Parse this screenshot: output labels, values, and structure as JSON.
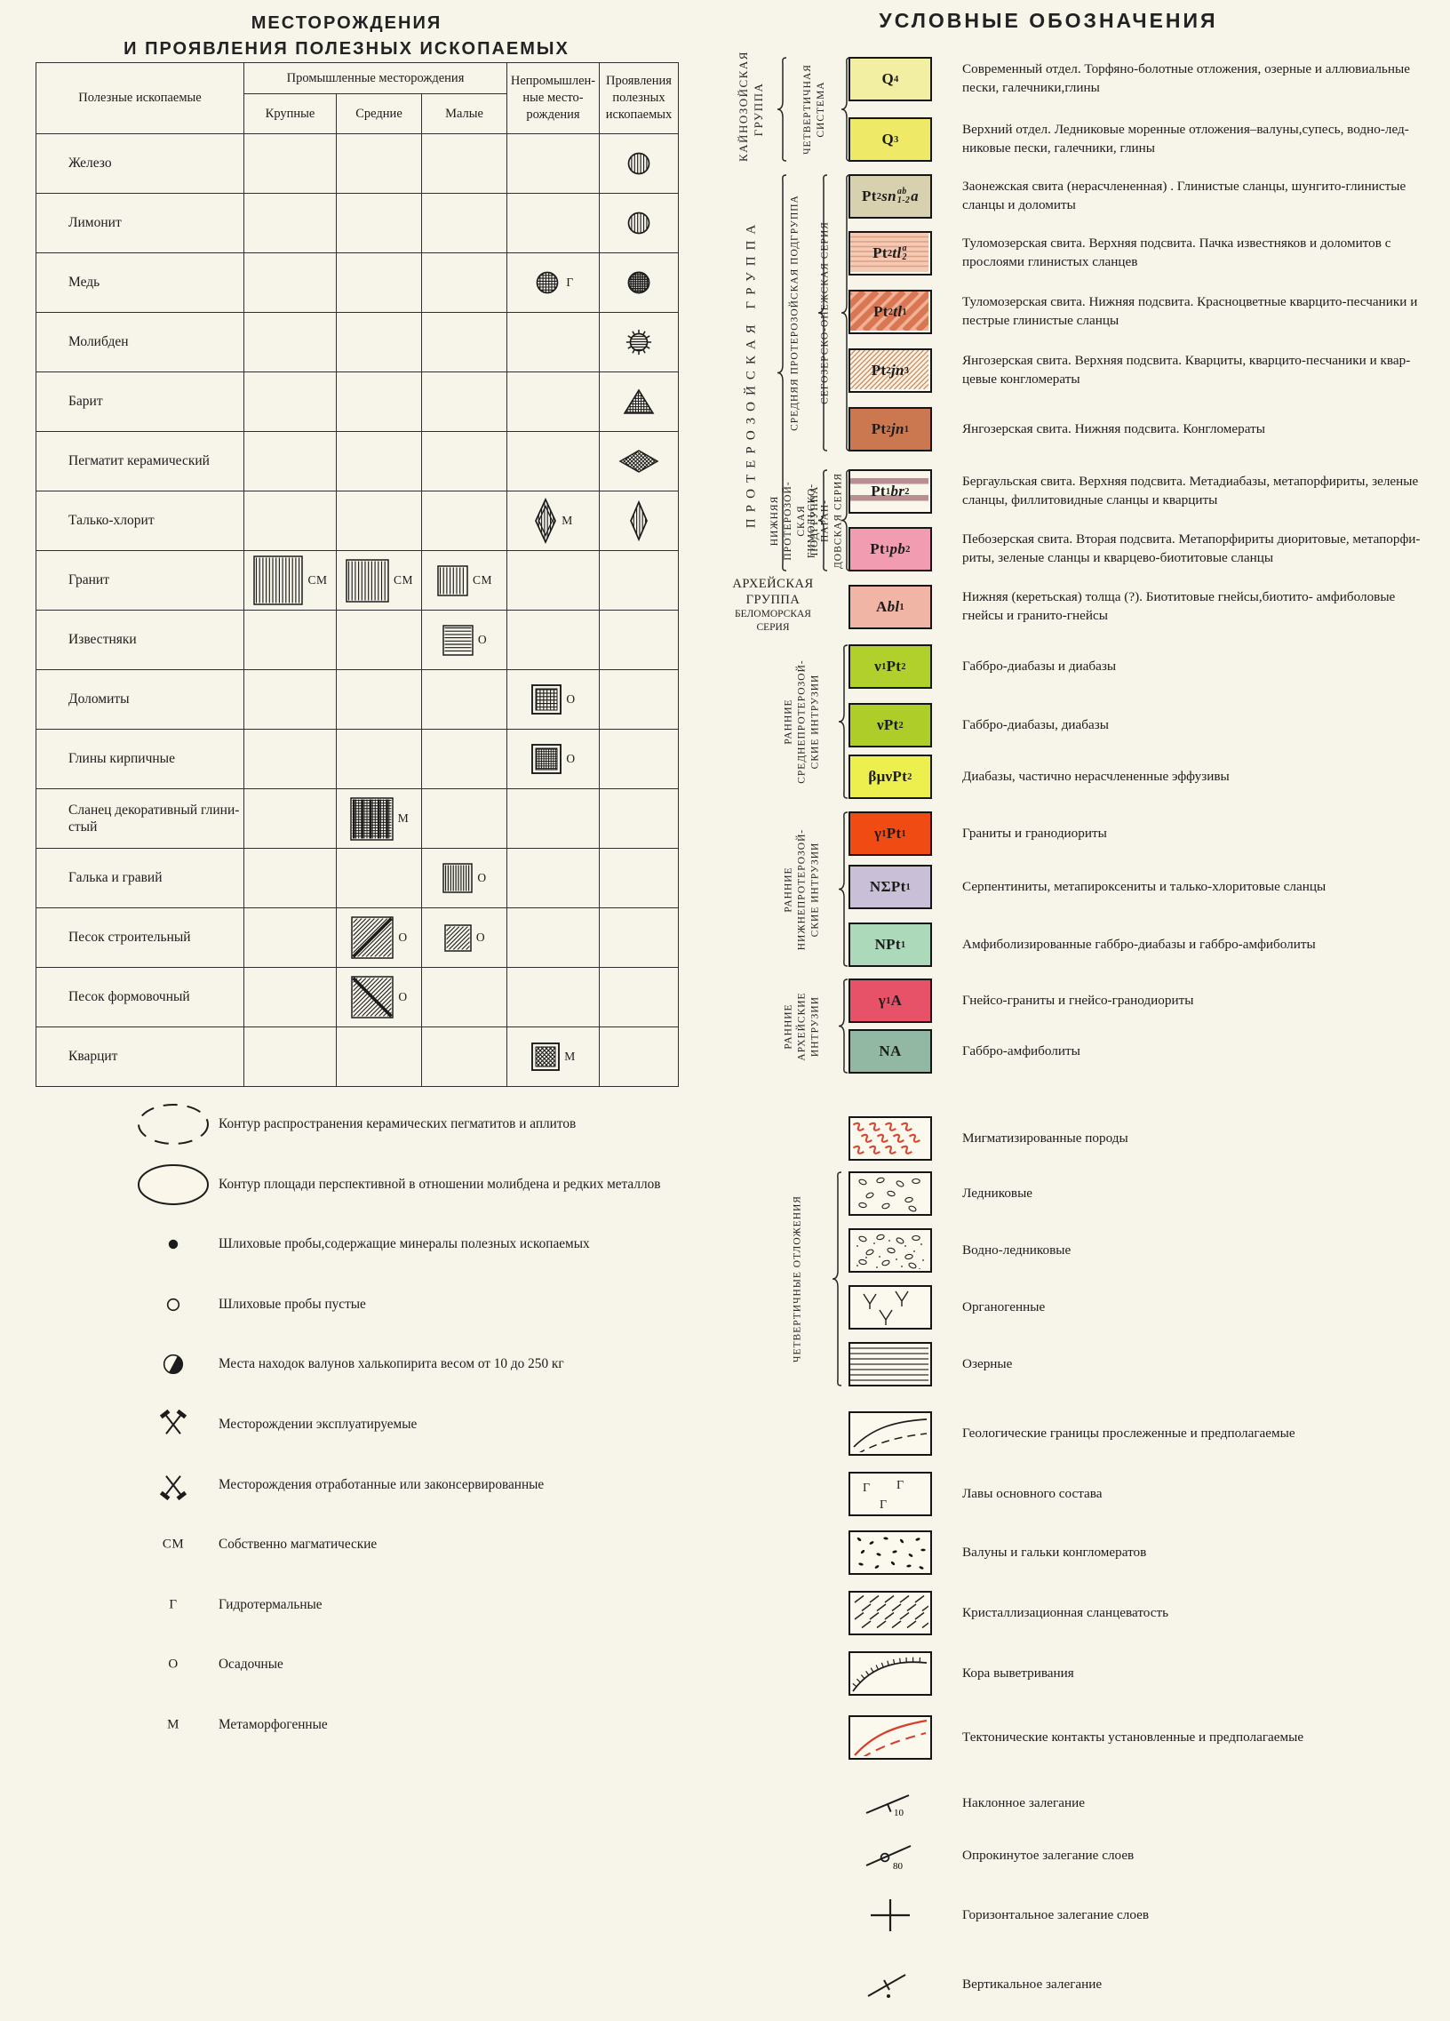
{
  "left": {
    "title_line1": "МЕСТОРОЖДЕНИЯ",
    "title_line2": "И ПРОЯВЛЕНИЯ ПОЛЕЗНЫХ ИСКОПАЕМЫХ",
    "table": {
      "header": {
        "minerals": "Полезные ископаемые",
        "industrial": "Промышленные месторождения",
        "sub": [
          "Крупные",
          "Средние",
          "Малые"
        ],
        "nonindustrial": "Непромышлен-\nные место-\nрождения",
        "occurrences": "Проявления\nполезных\nископаемых"
      },
      "rows": [
        {
          "name": "Железо",
          "cells": {
            "occur": {
              "kind": "circle",
              "pat": "v"
            }
          }
        },
        {
          "name": "Лимонит",
          "cells": {
            "occur": {
              "kind": "circle",
              "pat": "v"
            }
          }
        },
        {
          "name": "Медь",
          "cells": {
            "nonind": {
              "kind": "circle",
              "pat": "grid",
              "letter": "Г"
            },
            "occur": {
              "kind": "circle",
              "pat": "grid-bold"
            }
          }
        },
        {
          "name": "Молибден",
          "cells": {
            "occur": {
              "kind": "circle",
              "pat": "gear"
            }
          }
        },
        {
          "name": "Барит",
          "cells": {
            "occur": {
              "kind": "triangle"
            }
          }
        },
        {
          "name": "Пегматит керамический",
          "cells": {
            "occur": {
              "kind": "diamond-flat"
            }
          }
        },
        {
          "name": "Талько-хлорит",
          "cells": {
            "nonind": {
              "kind": "diamond-tall",
              "variant": "double",
              "letter": "М"
            },
            "occur": {
              "kind": "diamond-tall",
              "small": true
            }
          }
        },
        {
          "name": "Гранит",
          "cells": {
            "large": {
              "kind": "square",
              "size": 54,
              "pat": "v",
              "letter": "СМ"
            },
            "medium": {
              "kind": "square",
              "size": 47,
              "pat": "v",
              "letter": "СМ"
            },
            "small": {
              "kind": "square",
              "size": 33,
              "pat": "v",
              "letter": "СМ"
            }
          }
        },
        {
          "name": "Известняки",
          "cells": {
            "small": {
              "kind": "square",
              "size": 33,
              "pat": "h",
              "letter": "О"
            }
          }
        },
        {
          "name": "Доломиты",
          "cells": {
            "nonind": {
              "kind": "square",
              "size": 28,
              "pat": "grid",
              "bordered": true,
              "letter": "О"
            }
          }
        },
        {
          "name": "Глины кирпичные",
          "cells": {
            "nonind": {
              "kind": "square",
              "size": 28,
              "pat": "finegrid",
              "bordered": true,
              "letter": "О"
            }
          }
        },
        {
          "name": "Сланец декоративный глини-\nстый",
          "cells": {
            "medium": {
              "kind": "square",
              "size": 47,
              "pat": "densegrid",
              "letter": "М"
            }
          }
        },
        {
          "name": "Галька и гравий",
          "cells": {
            "small": {
              "kind": "square",
              "size": 32,
              "pat": "vdense",
              "letter": "О"
            }
          }
        },
        {
          "name": "Песок строительный",
          "cells": {
            "medium": {
              "kind": "square",
              "size": 46,
              "pat": "hatch",
              "bold": "up",
              "letter": "О"
            },
            "small": {
              "kind": "square",
              "size": 29,
              "pat": "hatch",
              "letter": "О"
            }
          }
        },
        {
          "name": "Песок формовочный",
          "cells": {
            "medium": {
              "kind": "square",
              "size": 46,
              "pat": "hatch",
              "bold": "down",
              "letter": "О"
            }
          }
        },
        {
          "name": "Кварцит",
          "cells": {
            "nonind": {
              "kind": "square",
              "size": 26,
              "pat": "crosshatch",
              "bordered": true,
              "letter": "М"
            }
          }
        }
      ]
    },
    "notes": [
      {
        "sym": "ellipse-dashed",
        "label": "Контур распространения  керамических  пегматитов и аплитов"
      },
      {
        "sym": "ellipse",
        "label": "Контур площади  перспективной  в  отношении  молибдена  и  редких  металлов"
      },
      {
        "sym": "dot",
        "label": "Шлиховые  пробы,содержащие  минералы  полезных ископаемых"
      },
      {
        "sym": "circle",
        "label": "Шлиховые  пробы  пустые"
      },
      {
        "sym": "half-circle",
        "label": "Места находок  валунов  халькопирита  весом  от 10 до 250 кг"
      },
      {
        "sym": "hammers-up",
        "label": "Месторождении  эксплуатируемые"
      },
      {
        "sym": "hammers-down",
        "label": "Месторождения   отработанные или  законсервированные"
      },
      {
        "sym": "letters",
        "text": "СМ",
        "label": "Собственно  магматические"
      },
      {
        "sym": "letters",
        "text": "Г",
        "label": "Гидротермальные"
      },
      {
        "sym": "letters",
        "text": "О",
        "label": "Осадочные"
      },
      {
        "sym": "letters",
        "text": "М",
        "label": "Метаморфогенные"
      }
    ]
  },
  "right": {
    "title": "УСЛОВНЫЕ  ОБОЗНАЧЕНИЯ",
    "groups": [
      {
        "label": "КАЙНОЗОЙСКАЯ\nГРУППА",
        "span": [
          0,
          1
        ],
        "slot": "group"
      },
      {
        "label": "ЧЕТВЕРТИЧНАЯ\nСИСТЕМА",
        "span": [
          0,
          1
        ],
        "slot": "system"
      },
      {
        "label": "ПРОТЕРОЗОЙСКАЯ   ГРУППА",
        "span": [
          2,
          8
        ],
        "slot": "group",
        "big": true
      },
      {
        "label": "СРЕДНЯЯ  ПРОТЕРОЗОЙСКАЯ  ПОДГРУППА",
        "span": [
          2,
          6
        ],
        "slot": "subgroup"
      },
      {
        "label": "СЕГОЗЕРСКО-ОНЕЖСКАЯ  СЕРИЯ",
        "span": [
          2,
          6
        ],
        "slot": "series"
      },
      {
        "label": "НИЖНЯЯ ПРОТЕРОЗОЙ-\nСКАЯ ПОДГРУППА",
        "span": [
          7,
          8
        ],
        "slot": "subgroup"
      },
      {
        "label": "ГИМОЛЬСКО-ПАРАН-\nДОВСКАЯ СЕРИЯ",
        "span": [
          7,
          8
        ],
        "slot": "series"
      },
      {
        "label": "АРХЕЙСКАЯ\nГРУППА",
        "label2": "БЕЛОМОРСКАЯ\nСЕРИЯ",
        "span": [
          9,
          9
        ],
        "slot": "archean"
      },
      {
        "label": "РАННИЕ\nСРЕДНЕПРОТЕРОЗОЙ-\nСКИЕ ИНТРУЗИИ",
        "span": [
          10,
          12
        ],
        "slot": "intrusion"
      },
      {
        "label": "РАННИЕ\nНИЖНЕПРОТЕРОЗОЙ-\nСКИЕ ИНТРУЗИИ",
        "span": [
          13,
          15
        ],
        "slot": "intrusion"
      },
      {
        "label": "РАННИЕ\nАРХЕЙСКИЕ\nИНТРУЗИИ",
        "span": [
          16,
          17
        ],
        "slot": "intrusion"
      },
      {
        "label": "ЧЕТВЕРТИЧНЫЕ  ОТЛОЖЕНИЯ",
        "span": [
          19,
          22
        ],
        "slot": "quaternary"
      }
    ],
    "entries": [
      {
        "code": [
          [
            "t",
            "Q"
          ],
          [
            "sub",
            "4"
          ]
        ],
        "pattern": "solid",
        "color": "#f2eea2",
        "desc": "Современный отдел. Торфяно-болотные отложения, озерные и аллювиальные пески, галечники,глины"
      },
      {
        "code": [
          [
            "t",
            "Q"
          ],
          [
            "sub",
            "3"
          ]
        ],
        "pattern": "solid",
        "color": "#eeea68",
        "desc": "Верхний отдел. Ледниковые  моренные  отложения–валуны,супесь, водно-лед-никовые пески,  галечники,  глины"
      },
      {
        "code": [
          [
            "t",
            "Pt"
          ],
          [
            "sub",
            "2"
          ],
          [
            "ti",
            "sn"
          ],
          [
            "stack",
            "ab",
            "1-2"
          ],
          [
            "ti",
            "a"
          ]
        ],
        "pattern": "solid",
        "color": "#d8d1af",
        "desc": "Заонежская свита (нерасчлененная) . Глинистые  сланцы,  шунгито-глинистые сланцы  и доломиты"
      },
      {
        "code": [
          [
            "t",
            "Pt"
          ],
          [
            "sub",
            "2"
          ],
          [
            "ti",
            "tl"
          ],
          [
            "stack",
            "a",
            "2"
          ]
        ],
        "pattern": "hlines",
        "bg": "#f5c9b2",
        "fg": "#d9a088",
        "desc": "Туломозерская свита.  Верхняя подсвита.  Пачка известняков  и доломитов с прослоями глинистых сланцев"
      },
      {
        "code": [
          [
            "t",
            "Pt"
          ],
          [
            "sub",
            "2"
          ],
          [
            "ti",
            "tl"
          ],
          [
            "sub",
            "1"
          ]
        ],
        "pattern": "diag-stripes",
        "bg": "#f0b197",
        "fg": "#d97752",
        "desc": "Туломозерская свита. Нижняя подсвита. Красноцветные  кварцито-песчаники и  пестрые  глинистые  сланцы"
      },
      {
        "code": [
          [
            "t",
            "Pt"
          ],
          [
            "sub",
            "2"
          ],
          [
            "ti",
            "jn"
          ],
          [
            "sub",
            "3"
          ]
        ],
        "pattern": "diag-hatch",
        "bg": "#faf3e4",
        "fg": "#c98a62",
        "desc": "Янгозерская свита.  Верхняя  подсвита.  Кварциты,  кварцито-песчаники и квар-цевые  конгломераты"
      },
      {
        "code": [
          [
            "t",
            "Pt"
          ],
          [
            "sub",
            "2"
          ],
          [
            "ti",
            "jn"
          ],
          [
            "sub",
            "1"
          ]
        ],
        "pattern": "solid",
        "color": "#cb7750",
        "desc": "Янгозерская свита. Нижняя подсвита. Конгломераты"
      },
      {
        "code": [
          [
            "t",
            "Pt"
          ],
          [
            "sub",
            "1"
          ],
          [
            "ti",
            "br"
          ],
          [
            "sub",
            "2"
          ]
        ],
        "pattern": "hbands",
        "bg": "#faf6e9",
        "fg": "#b78f92",
        "desc": "Бергаульская свита. Верхняя подсвита. Метадиабазы,  метапорфириты, зеленые сланцы, филлитовидные  сланцы и кварциты"
      },
      {
        "code": [
          [
            "t",
            "Pt"
          ],
          [
            "sub",
            "1"
          ],
          [
            "ti",
            "pb"
          ],
          [
            "sub",
            "2"
          ]
        ],
        "pattern": "solid",
        "color": "#f29cb1",
        "desc": "Пебозерская свита.  Вторая  подсвита.  Метапорфириты  диоритовые,  метапорфи-риты, зеленые  сланцы и  кварцево-биотитовые  сланцы"
      },
      {
        "code": [
          [
            "t",
            "A"
          ],
          [
            "ti",
            "bl"
          ],
          [
            "sub",
            "1"
          ]
        ],
        "pattern": "solid",
        "color": "#f1b5a5",
        "desc": "Нижняя  (керетьская)  толща (?).  Биотитовые  гнейсы,биотито- амфиболовые гнейсы  и  гранито-гнейсы"
      },
      {
        "code": [
          [
            "t",
            "ν"
          ],
          [
            "sub",
            "1"
          ],
          [
            "t",
            "Pt"
          ],
          [
            "sub",
            "2"
          ]
        ],
        "pattern": "solid",
        "color": "#b1d02b",
        "desc": "Габбро-диабазы  и  диабазы"
      },
      {
        "code": [
          [
            "t",
            "νPt"
          ],
          [
            "sub",
            "2"
          ]
        ],
        "pattern": "solid",
        "color": "#aecd29",
        "desc": "Габбро-диабазы,  диабазы"
      },
      {
        "code": [
          [
            "t",
            "βμνPt"
          ],
          [
            "sub",
            "2"
          ]
        ],
        "pattern": "solid",
        "color": "#edef4e",
        "desc": "Диабазы, частично  нерасчлененные  эффузивы"
      },
      {
        "code": [
          [
            "t",
            "γ"
          ],
          [
            "sub",
            "1"
          ],
          [
            "t",
            "Pt"
          ],
          [
            "sub",
            "1"
          ]
        ],
        "pattern": "solid",
        "color": "#f04b13",
        "desc": "Граниты  и  гранодиориты"
      },
      {
        "code": [
          [
            "t",
            "NΣPt"
          ],
          [
            "sub",
            "1"
          ]
        ],
        "pattern": "solid",
        "color": "#c9bfd7",
        "desc": "Серпентиниты,  метапироксениты  и  талько-хлоритовые  сланцы"
      },
      {
        "code": [
          [
            "t",
            "NPt"
          ],
          [
            "sub",
            "1"
          ]
        ],
        "pattern": "solid",
        "color": "#abd9ba",
        "desc": "Амфиболизированные  габбро-диабазы  и  габбро-амфиболиты"
      },
      {
        "code": [
          [
            "t",
            "γ"
          ],
          [
            "sub",
            "1"
          ],
          [
            "t",
            "A"
          ]
        ],
        "pattern": "solid",
        "color": "#e75269",
        "desc": "Гнейсо-граниты  и гнейсо-гранодиориты"
      },
      {
        "code": [
          [
            "t",
            "NA"
          ]
        ],
        "pattern": "solid",
        "color": "#92b7a3",
        "desc": "Габбро-амфиболиты"
      },
      {
        "pattern": "squiggles",
        "fg": "#d94631",
        "desc": "Мигматизированные  породы"
      },
      {
        "pattern": "pebbles",
        "desc": "Ледниковые"
      },
      {
        "pattern": "pebbles-dots",
        "desc": "Водно-ледниковые"
      },
      {
        "pattern": "marsh",
        "desc": "Органогенные"
      },
      {
        "pattern": "hlines-black",
        "desc": "Озерные"
      },
      {
        "pattern": "boundary",
        "desc": "Геологические границы  прослеженные  и предполагаемые"
      },
      {
        "pattern": "lavas",
        "desc": "Лавы основного состава"
      },
      {
        "pattern": "boulders",
        "desc": "Валуны  и гальки  конгломератов"
      },
      {
        "pattern": "schistosity",
        "desc": "Кристаллизационная  сланцеватость"
      },
      {
        "pattern": "weathering",
        "desc": "Кора  выветривания"
      },
      {
        "pattern": "tectonic",
        "fg": "#d6402a",
        "desc": "Тектонические  контакты  установленные   и   предполагаемые"
      },
      {
        "sym": "dip",
        "value": "10",
        "desc": "Наклонное залегание"
      },
      {
        "sym": "overturned",
        "value": "80",
        "desc": "Опрокинутое  залегание  слоев"
      },
      {
        "sym": "horizontal",
        "desc": "Горизонтальное  залегание  слоев"
      },
      {
        "sym": "vertical",
        "desc": "Вертикальное  залегание"
      }
    ]
  }
}
